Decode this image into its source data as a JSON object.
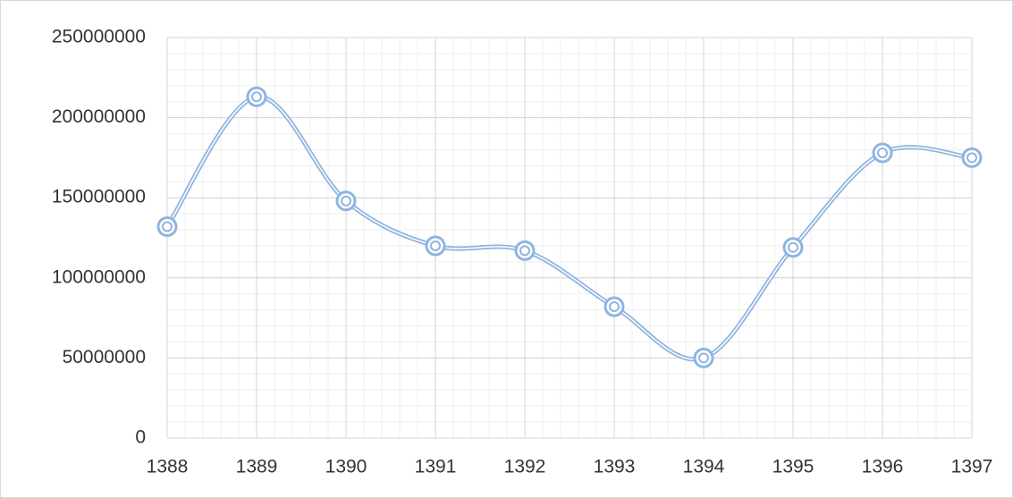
{
  "chart_data": {
    "type": "line",
    "categories": [
      "1388",
      "1389",
      "1390",
      "1391",
      "1392",
      "1393",
      "1394",
      "1395",
      "1396",
      "1397"
    ],
    "series": [
      {
        "color": "#8fb4e0",
        "values": [
          132000000,
          213000000,
          148000000,
          120000000,
          117000000,
          82000000,
          50000000,
          119000000,
          178000000,
          175000000
        ]
      }
    ],
    "ylim": [
      0,
      250000000
    ],
    "yticks": [
      0,
      50000000,
      100000000,
      150000000,
      200000000,
      250000000
    ],
    "grid": true,
    "smooth": true
  }
}
